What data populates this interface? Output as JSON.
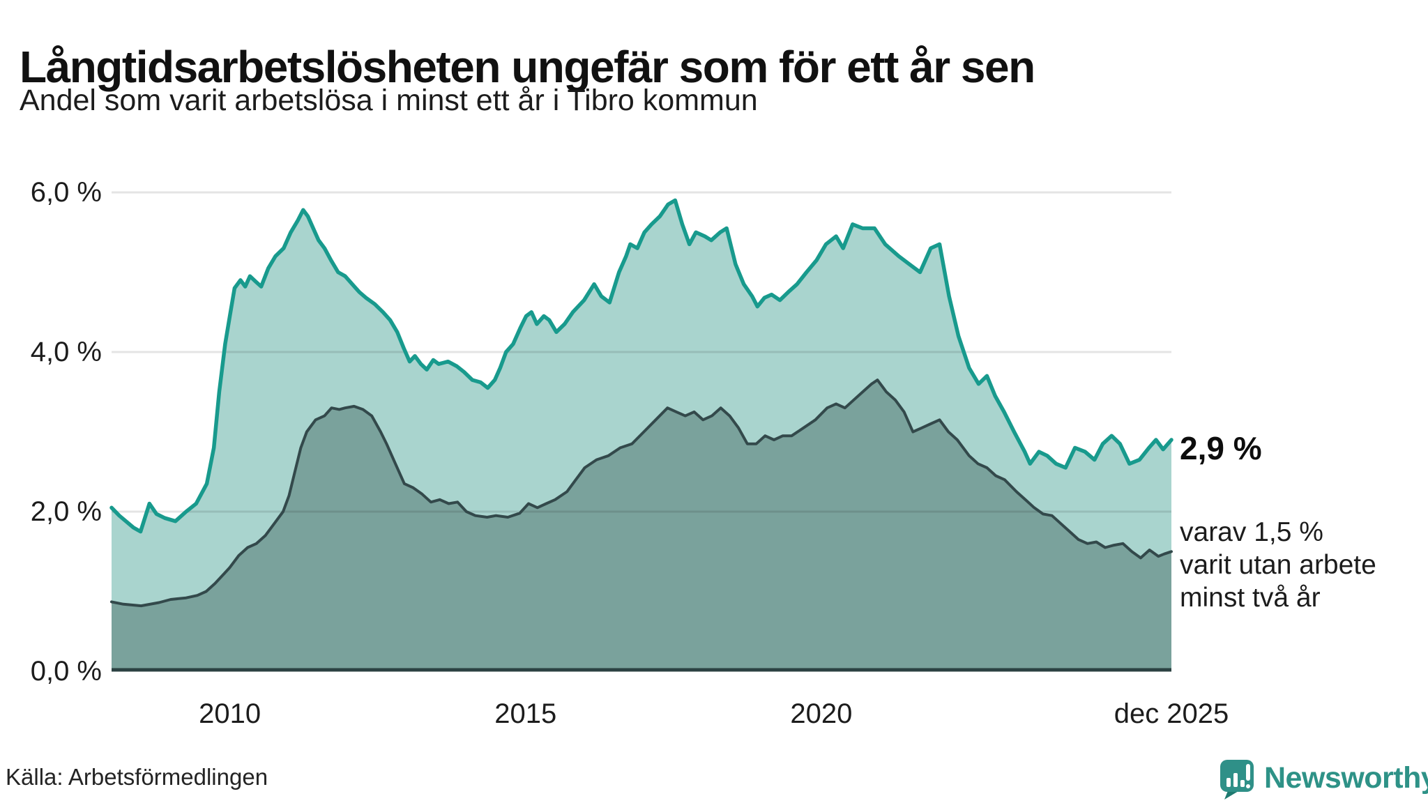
{
  "header": {
    "title": "Långtidsarbetslösheten ungefär som för ett år sen",
    "subtitle": "Andel som varit arbetslösa i minst ett år i Tibro kommun"
  },
  "chart_data": {
    "type": "area",
    "title": "Andel som varit arbetslösa i minst ett år i Tibro kommun",
    "x_unit": "decimal_year",
    "x_range": [
      2008.0,
      2025.92
    ],
    "y_range_pct": [
      0,
      6.5
    ],
    "grid": "horizontal",
    "y_ticks": [
      {
        "v": 6,
        "label": "6,0 %"
      },
      {
        "v": 4,
        "label": "4,0 %"
      },
      {
        "v": 2,
        "label": "2,0 %"
      },
      {
        "v": 0,
        "label": "0,0 %"
      }
    ],
    "x_ticks": [
      {
        "t": 2010,
        "label": "2010"
      },
      {
        "t": 2015,
        "label": "2015"
      },
      {
        "t": 2020,
        "label": "2020"
      },
      {
        "t": 2025.92,
        "label": "dec 2025"
      }
    ],
    "series": [
      {
        "name": "arbetslösa minst ett år",
        "line_color": "#189a8d",
        "fill_color": "#a9d4ce",
        "end_value_pct": 2.9,
        "points": [
          [
            2008.0,
            2.05
          ],
          [
            2008.13,
            1.95
          ],
          [
            2008.37,
            1.8
          ],
          [
            2008.49,
            1.75
          ],
          [
            2008.64,
            2.1
          ],
          [
            2008.76,
            1.97
          ],
          [
            2008.9,
            1.92
          ],
          [
            2009.08,
            1.88
          ],
          [
            2009.26,
            2.0
          ],
          [
            2009.43,
            2.1
          ],
          [
            2009.61,
            2.35
          ],
          [
            2009.73,
            2.8
          ],
          [
            2009.82,
            3.5
          ],
          [
            2009.92,
            4.1
          ],
          [
            2010.0,
            4.45
          ],
          [
            2010.08,
            4.8
          ],
          [
            2010.18,
            4.9
          ],
          [
            2010.26,
            4.82
          ],
          [
            2010.34,
            4.95
          ],
          [
            2010.44,
            4.88
          ],
          [
            2010.53,
            4.82
          ],
          [
            2010.65,
            5.05
          ],
          [
            2010.77,
            5.2
          ],
          [
            2010.91,
            5.3
          ],
          [
            2011.03,
            5.5
          ],
          [
            2011.15,
            5.65
          ],
          [
            2011.24,
            5.78
          ],
          [
            2011.32,
            5.7
          ],
          [
            2011.41,
            5.55
          ],
          [
            2011.5,
            5.4
          ],
          [
            2011.6,
            5.3
          ],
          [
            2011.71,
            5.15
          ],
          [
            2011.83,
            5.0
          ],
          [
            2011.95,
            4.95
          ],
          [
            2012.07,
            4.85
          ],
          [
            2012.19,
            4.75
          ],
          [
            2012.3,
            4.68
          ],
          [
            2012.45,
            4.6
          ],
          [
            2012.59,
            4.5
          ],
          [
            2012.71,
            4.4
          ],
          [
            2012.83,
            4.25
          ],
          [
            2012.94,
            4.05
          ],
          [
            2013.04,
            3.88
          ],
          [
            2013.13,
            3.95
          ],
          [
            2013.23,
            3.85
          ],
          [
            2013.33,
            3.78
          ],
          [
            2013.44,
            3.9
          ],
          [
            2013.53,
            3.85
          ],
          [
            2013.69,
            3.88
          ],
          [
            2013.84,
            3.82
          ],
          [
            2013.96,
            3.75
          ],
          [
            2014.1,
            3.65
          ],
          [
            2014.24,
            3.62
          ],
          [
            2014.36,
            3.55
          ],
          [
            2014.48,
            3.65
          ],
          [
            2014.57,
            3.8
          ],
          [
            2014.67,
            4.0
          ],
          [
            2014.79,
            4.1
          ],
          [
            2014.91,
            4.3
          ],
          [
            2015.01,
            4.45
          ],
          [
            2015.1,
            4.5
          ],
          [
            2015.19,
            4.35
          ],
          [
            2015.31,
            4.45
          ],
          [
            2015.4,
            4.4
          ],
          [
            2015.52,
            4.25
          ],
          [
            2015.66,
            4.35
          ],
          [
            2015.8,
            4.5
          ],
          [
            2015.99,
            4.65
          ],
          [
            2016.16,
            4.85
          ],
          [
            2016.28,
            4.7
          ],
          [
            2016.42,
            4.62
          ],
          [
            2016.58,
            5.0
          ],
          [
            2016.7,
            5.2
          ],
          [
            2016.77,
            5.35
          ],
          [
            2016.89,
            5.3
          ],
          [
            2017.01,
            5.5
          ],
          [
            2017.13,
            5.6
          ],
          [
            2017.27,
            5.7
          ],
          [
            2017.41,
            5.85
          ],
          [
            2017.53,
            5.9
          ],
          [
            2017.65,
            5.6
          ],
          [
            2017.77,
            5.35
          ],
          [
            2017.88,
            5.5
          ],
          [
            2018.03,
            5.45
          ],
          [
            2018.14,
            5.4
          ],
          [
            2018.29,
            5.5
          ],
          [
            2018.4,
            5.55
          ],
          [
            2018.55,
            5.1
          ],
          [
            2018.69,
            4.85
          ],
          [
            2018.83,
            4.7
          ],
          [
            2018.92,
            4.57
          ],
          [
            2019.04,
            4.68
          ],
          [
            2019.16,
            4.72
          ],
          [
            2019.3,
            4.65
          ],
          [
            2019.44,
            4.75
          ],
          [
            2019.59,
            4.85
          ],
          [
            2019.75,
            5.0
          ],
          [
            2019.92,
            5.15
          ],
          [
            2020.08,
            5.35
          ],
          [
            2020.25,
            5.45
          ],
          [
            2020.37,
            5.3
          ],
          [
            2020.53,
            5.6
          ],
          [
            2020.7,
            5.55
          ],
          [
            2020.9,
            5.55
          ],
          [
            2021.08,
            5.35
          ],
          [
            2021.31,
            5.2
          ],
          [
            2021.49,
            5.1
          ],
          [
            2021.67,
            5.0
          ],
          [
            2021.85,
            5.3
          ],
          [
            2022.0,
            5.35
          ],
          [
            2022.16,
            4.7
          ],
          [
            2022.32,
            4.2
          ],
          [
            2022.5,
            3.8
          ],
          [
            2022.66,
            3.6
          ],
          [
            2022.8,
            3.7
          ],
          [
            2022.94,
            3.45
          ],
          [
            2023.09,
            3.25
          ],
          [
            2023.26,
            3.0
          ],
          [
            2023.44,
            2.75
          ],
          [
            2023.53,
            2.6
          ],
          [
            2023.68,
            2.75
          ],
          [
            2023.82,
            2.7
          ],
          [
            2023.97,
            2.6
          ],
          [
            2024.13,
            2.55
          ],
          [
            2024.29,
            2.8
          ],
          [
            2024.46,
            2.75
          ],
          [
            2024.62,
            2.65
          ],
          [
            2024.76,
            2.85
          ],
          [
            2024.91,
            2.95
          ],
          [
            2025.05,
            2.85
          ],
          [
            2025.21,
            2.6
          ],
          [
            2025.38,
            2.65
          ],
          [
            2025.54,
            2.8
          ],
          [
            2025.66,
            2.9
          ],
          [
            2025.78,
            2.78
          ],
          [
            2025.92,
            2.9
          ]
        ]
      },
      {
        "name": "varav utan arbete minst två år",
        "line_color": "#33494b",
        "fill_color": "#7aa29c",
        "end_value_pct": 1.5,
        "points": [
          [
            2008.0,
            0.87
          ],
          [
            2008.2,
            0.84
          ],
          [
            2008.5,
            0.82
          ],
          [
            2008.8,
            0.86
          ],
          [
            2009.0,
            0.9
          ],
          [
            2009.26,
            0.92
          ],
          [
            2009.45,
            0.95
          ],
          [
            2009.6,
            1.0
          ],
          [
            2009.75,
            1.1
          ],
          [
            2009.9,
            1.22
          ],
          [
            2010.0,
            1.3
          ],
          [
            2010.15,
            1.45
          ],
          [
            2010.3,
            1.55
          ],
          [
            2010.45,
            1.6
          ],
          [
            2010.6,
            1.7
          ],
          [
            2010.75,
            1.85
          ],
          [
            2010.9,
            2.0
          ],
          [
            2011.0,
            2.2
          ],
          [
            2011.1,
            2.5
          ],
          [
            2011.2,
            2.8
          ],
          [
            2011.3,
            3.0
          ],
          [
            2011.45,
            3.15
          ],
          [
            2011.6,
            3.2
          ],
          [
            2011.72,
            3.3
          ],
          [
            2011.85,
            3.28
          ],
          [
            2011.95,
            3.3
          ],
          [
            2012.1,
            3.32
          ],
          [
            2012.25,
            3.28
          ],
          [
            2012.4,
            3.2
          ],
          [
            2012.55,
            3.0
          ],
          [
            2012.65,
            2.85
          ],
          [
            2012.8,
            2.6
          ],
          [
            2012.95,
            2.35
          ],
          [
            2013.1,
            2.3
          ],
          [
            2013.25,
            2.22
          ],
          [
            2013.4,
            2.12
          ],
          [
            2013.55,
            2.15
          ],
          [
            2013.7,
            2.1
          ],
          [
            2013.85,
            2.12
          ],
          [
            2014.0,
            2.0
          ],
          [
            2014.15,
            1.95
          ],
          [
            2014.35,
            1.93
          ],
          [
            2014.5,
            1.95
          ],
          [
            2014.7,
            1.93
          ],
          [
            2014.9,
            1.98
          ],
          [
            2015.05,
            2.1
          ],
          [
            2015.2,
            2.05
          ],
          [
            2015.35,
            2.1
          ],
          [
            2015.5,
            2.15
          ],
          [
            2015.7,
            2.25
          ],
          [
            2015.85,
            2.4
          ],
          [
            2016.0,
            2.55
          ],
          [
            2016.2,
            2.65
          ],
          [
            2016.4,
            2.7
          ],
          [
            2016.6,
            2.8
          ],
          [
            2016.8,
            2.85
          ],
          [
            2017.0,
            3.0
          ],
          [
            2017.2,
            3.15
          ],
          [
            2017.4,
            3.3
          ],
          [
            2017.55,
            3.25
          ],
          [
            2017.7,
            3.2
          ],
          [
            2017.85,
            3.25
          ],
          [
            2018.0,
            3.15
          ],
          [
            2018.15,
            3.2
          ],
          [
            2018.3,
            3.3
          ],
          [
            2018.45,
            3.2
          ],
          [
            2018.6,
            3.05
          ],
          [
            2018.75,
            2.85
          ],
          [
            2018.9,
            2.85
          ],
          [
            2019.05,
            2.95
          ],
          [
            2019.2,
            2.9
          ],
          [
            2019.35,
            2.95
          ],
          [
            2019.5,
            2.95
          ],
          [
            2019.7,
            3.05
          ],
          [
            2019.9,
            3.15
          ],
          [
            2020.1,
            3.3
          ],
          [
            2020.25,
            3.35
          ],
          [
            2020.4,
            3.3
          ],
          [
            2020.55,
            3.4
          ],
          [
            2020.7,
            3.5
          ],
          [
            2020.85,
            3.6
          ],
          [
            2020.95,
            3.65
          ],
          [
            2021.1,
            3.5
          ],
          [
            2021.25,
            3.4
          ],
          [
            2021.4,
            3.25
          ],
          [
            2021.55,
            3.0
          ],
          [
            2021.7,
            3.05
          ],
          [
            2021.85,
            3.1
          ],
          [
            2022.0,
            3.15
          ],
          [
            2022.15,
            3.0
          ],
          [
            2022.3,
            2.9
          ],
          [
            2022.5,
            2.7
          ],
          [
            2022.65,
            2.6
          ],
          [
            2022.8,
            2.55
          ],
          [
            2022.95,
            2.45
          ],
          [
            2023.1,
            2.4
          ],
          [
            2023.3,
            2.25
          ],
          [
            2023.45,
            2.15
          ],
          [
            2023.6,
            2.05
          ],
          [
            2023.75,
            1.97
          ],
          [
            2023.9,
            1.95
          ],
          [
            2024.05,
            1.85
          ],
          [
            2024.2,
            1.75
          ],
          [
            2024.35,
            1.65
          ],
          [
            2024.5,
            1.6
          ],
          [
            2024.65,
            1.62
          ],
          [
            2024.8,
            1.55
          ],
          [
            2024.95,
            1.58
          ],
          [
            2025.1,
            1.6
          ],
          [
            2025.25,
            1.5
          ],
          [
            2025.4,
            1.42
          ],
          [
            2025.55,
            1.52
          ],
          [
            2025.7,
            1.44
          ],
          [
            2025.8,
            1.47
          ],
          [
            2025.92,
            1.5
          ]
        ]
      }
    ],
    "annotations": {
      "end_value_label": "2,9 %",
      "sub_lines": [
        "varav 1,5 %",
        "varit utan arbete",
        "minst två år"
      ]
    }
  },
  "footer": {
    "source": "Källa: Arbetsförmedlingen",
    "logo_text": "Newsworthy"
  },
  "colors": {
    "teal_line": "#189a8d",
    "teal_fill": "#a9d4ce",
    "dark_line": "#33494b",
    "dark_fill": "#7aa29c",
    "baseline": "#2b4142",
    "logo_teal": "#2f9088",
    "logo_tail": "#1e7a70"
  }
}
